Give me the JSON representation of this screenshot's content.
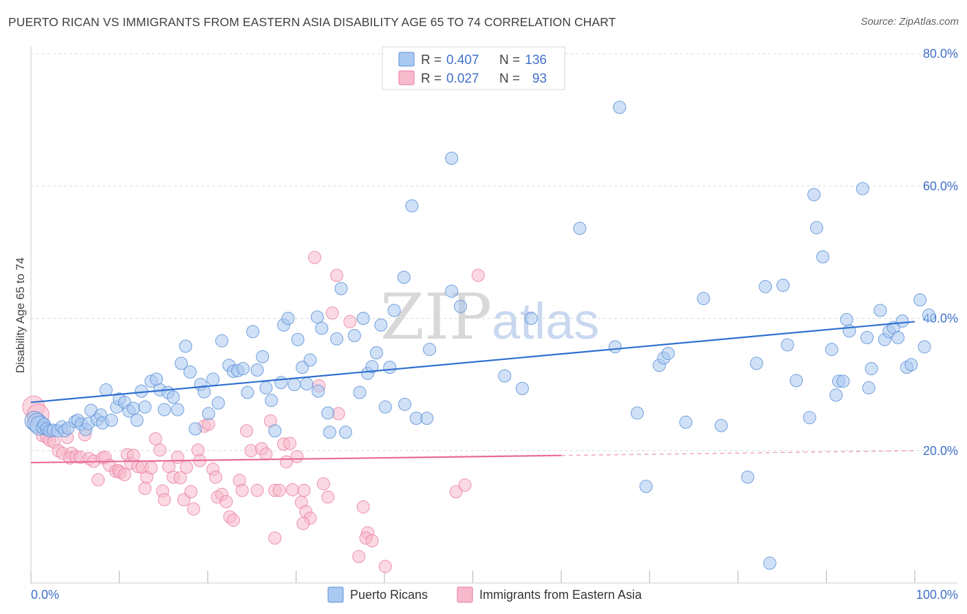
{
  "title": "PUERTO RICAN VS IMMIGRANTS FROM EASTERN ASIA DISABILITY AGE 65 TO 74 CORRELATION CHART",
  "source": "Source: ZipAtlas.com",
  "watermark": {
    "zip": "ZIP",
    "atlas": "atlas"
  },
  "legend": {
    "r_label": "R =",
    "n_label": "N =",
    "rows": [
      {
        "r": "0.407",
        "n": "136",
        "color": "#a9c9f1"
      },
      {
        "r": "0.027",
        "n": "93",
        "color": "#f7b9cc"
      }
    ]
  },
  "bottom_legend": [
    "Puerto Ricans",
    "Immigrants from Eastern Asia"
  ],
  "colors": {
    "blue_fill": "#a9c9f1",
    "blue_stroke": "#5b8fd6",
    "blue_line": "#2e6fd0",
    "pink_fill": "#f7b9cc",
    "pink_stroke": "#e8799c",
    "pink_line": "#e8699a",
    "tick_text": "#3f70c9",
    "grid": "#d9d9d9"
  },
  "chart_data": {
    "type": "scatter",
    "title": "PUERTO RICAN VS IMMIGRANTS FROM EASTERN ASIA DISABILITY AGE 65 TO 74 CORRELATION CHART",
    "xlabel": "",
    "ylabel": "Disability Age 65 to 74",
    "xlim": [
      0,
      100
    ],
    "ylim": [
      0,
      80
    ],
    "x_ticks": [
      "0.0%",
      "100.0%"
    ],
    "y_ticks": [
      {
        "value": 20,
        "label": "20.0%"
      },
      {
        "value": 40,
        "label": "40.0%"
      },
      {
        "value": 60,
        "label": "60.0%"
      },
      {
        "value": 80,
        "label": "80.0%"
      }
    ],
    "series": [
      {
        "name": "Puerto Ricans",
        "r": 0.407,
        "n": 136,
        "trend": {
          "x0": 0,
          "y0": 27.3,
          "x1": 100,
          "y1": 39.5
        },
        "points": [
          [
            0.4,
            24.5
          ],
          [
            0.7,
            24.2
          ],
          [
            1.0,
            23.8
          ],
          [
            1.3,
            23.5
          ],
          [
            1.5,
            24.0
          ],
          [
            1.8,
            23.3
          ],
          [
            2.1,
            23.0
          ],
          [
            2.5,
            23.1
          ],
          [
            3.0,
            23.0
          ],
          [
            3.5,
            23.6
          ],
          [
            3.8,
            23.0
          ],
          [
            4.2,
            23.4
          ],
          [
            5.0,
            24.4
          ],
          [
            5.3,
            24.6
          ],
          [
            5.7,
            24.0
          ],
          [
            6.2,
            23.2
          ],
          [
            6.5,
            24.1
          ],
          [
            6.8,
            26.1
          ],
          [
            7.5,
            24.7
          ],
          [
            7.9,
            25.4
          ],
          [
            8.1,
            24.2
          ],
          [
            8.5,
            29.2
          ],
          [
            9.1,
            24.6
          ],
          [
            9.7,
            26.6
          ],
          [
            10.0,
            27.8
          ],
          [
            10.6,
            27.3
          ],
          [
            11.1,
            26.0
          ],
          [
            11.6,
            26.4
          ],
          [
            12.0,
            24.6
          ],
          [
            12.5,
            29.0
          ],
          [
            12.9,
            26.6
          ],
          [
            13.6,
            30.5
          ],
          [
            14.2,
            30.8
          ],
          [
            14.6,
            29.2
          ],
          [
            15.1,
            26.2
          ],
          [
            15.5,
            28.8
          ],
          [
            16.1,
            28.1
          ],
          [
            16.6,
            26.2
          ],
          [
            17.0,
            33.2
          ],
          [
            17.5,
            35.8
          ],
          [
            18.0,
            31.9
          ],
          [
            18.6,
            23.3
          ],
          [
            19.2,
            30.0
          ],
          [
            19.6,
            28.9
          ],
          [
            20.1,
            25.6
          ],
          [
            20.6,
            30.8
          ],
          [
            21.2,
            27.2
          ],
          [
            21.6,
            36.6
          ],
          [
            22.4,
            32.9
          ],
          [
            22.9,
            32.0
          ],
          [
            23.4,
            32.1
          ],
          [
            24.0,
            32.4
          ],
          [
            24.5,
            28.8
          ],
          [
            25.1,
            38.0
          ],
          [
            25.6,
            32.2
          ],
          [
            26.2,
            34.2
          ],
          [
            26.6,
            29.5
          ],
          [
            27.2,
            27.6
          ],
          [
            27.6,
            23.0
          ],
          [
            28.3,
            30.3
          ],
          [
            28.6,
            39.0
          ],
          [
            29.1,
            40.0
          ],
          [
            29.8,
            30.0
          ],
          [
            30.2,
            36.8
          ],
          [
            30.7,
            32.6
          ],
          [
            31.2,
            30.1
          ],
          [
            31.6,
            33.7
          ],
          [
            32.5,
            29.0
          ],
          [
            32.4,
            40.2
          ],
          [
            32.9,
            38.5
          ],
          [
            33.6,
            25.7
          ],
          [
            33.8,
            22.8
          ],
          [
            34.6,
            36.9
          ],
          [
            35.1,
            44.5
          ],
          [
            35.6,
            22.8
          ],
          [
            36.6,
            37.4
          ],
          [
            37.6,
            40.0
          ],
          [
            38.1,
            31.7
          ],
          [
            37.2,
            28.8
          ],
          [
            38.6,
            32.7
          ],
          [
            39.1,
            34.8
          ],
          [
            39.6,
            39.0
          ],
          [
            40.1,
            26.6
          ],
          [
            40.6,
            32.6
          ],
          [
            41.1,
            41.2
          ],
          [
            42.2,
            46.2
          ],
          [
            42.3,
            27.0
          ],
          [
            43.1,
            57.0
          ],
          [
            43.6,
            24.9
          ],
          [
            44.8,
            24.9
          ],
          [
            45.1,
            35.3
          ],
          [
            47.6,
            64.2
          ],
          [
            47.6,
            44.1
          ],
          [
            48.6,
            41.8
          ],
          [
            53.6,
            31.3
          ],
          [
            55.6,
            29.4
          ],
          [
            56.6,
            40.0
          ],
          [
            62.1,
            53.6
          ],
          [
            66.6,
            71.9
          ],
          [
            66.1,
            35.7
          ],
          [
            68.6,
            25.7
          ],
          [
            69.6,
            14.6
          ],
          [
            71.1,
            32.9
          ],
          [
            71.6,
            34.0
          ],
          [
            72.1,
            34.7
          ],
          [
            74.1,
            24.3
          ],
          [
            76.1,
            43.0
          ],
          [
            78.1,
            23.8
          ],
          [
            81.1,
            16.0
          ],
          [
            82.1,
            33.2
          ],
          [
            83.1,
            44.8
          ],
          [
            83.6,
            3.0
          ],
          [
            85.1,
            45.0
          ],
          [
            85.6,
            36.0
          ],
          [
            86.6,
            30.6
          ],
          [
            88.1,
            25.0
          ],
          [
            88.6,
            58.7
          ],
          [
            88.9,
            53.7
          ],
          [
            89.6,
            49.3
          ],
          [
            90.6,
            35.3
          ],
          [
            91.1,
            28.4
          ],
          [
            91.4,
            30.5
          ],
          [
            91.9,
            30.5
          ],
          [
            92.3,
            39.8
          ],
          [
            92.6,
            38.1
          ],
          [
            94.1,
            59.6
          ],
          [
            94.6,
            37.1
          ],
          [
            95.1,
            32.4
          ],
          [
            94.8,
            29.5
          ],
          [
            96.1,
            41.2
          ],
          [
            96.6,
            36.8
          ],
          [
            97.1,
            38.0
          ],
          [
            97.6,
            38.6
          ],
          [
            98.1,
            37.1
          ],
          [
            98.6,
            39.6
          ],
          [
            99.1,
            32.6
          ],
          [
            99.6,
            33.0
          ],
          [
            100.6,
            42.8
          ],
          [
            101.1,
            35.7
          ],
          [
            101.6,
            40.5
          ]
        ]
      },
      {
        "name": "Immigrants from Eastern Asia",
        "r": 0.027,
        "n": 93,
        "trend": {
          "x0": 0,
          "y0": 18.2,
          "x1": 100,
          "y1": 20.0,
          "solid_until": 60
        },
        "points": [
          [
            0.3,
            26.6
          ],
          [
            0.8,
            25.4
          ],
          [
            1.3,
            22.3
          ],
          [
            1.8,
            22.0
          ],
          [
            2.1,
            21.6
          ],
          [
            2.6,
            21.3
          ],
          [
            3.1,
            20.0
          ],
          [
            3.6,
            19.6
          ],
          [
            4.1,
            22.0
          ],
          [
            4.6,
            19.6
          ],
          [
            4.4,
            18.9
          ],
          [
            5.1,
            19.1
          ],
          [
            5.6,
            19.0
          ],
          [
            6.1,
            22.4
          ],
          [
            6.6,
            18.8
          ],
          [
            7.1,
            18.4
          ],
          [
            7.6,
            15.6
          ],
          [
            8.1,
            18.9
          ],
          [
            8.4,
            19.0
          ],
          [
            8.9,
            17.8
          ],
          [
            9.6,
            16.9
          ],
          [
            9.9,
            17.0
          ],
          [
            10.1,
            16.7
          ],
          [
            10.6,
            16.4
          ],
          [
            10.9,
            19.4
          ],
          [
            11.3,
            18.1
          ],
          [
            11.6,
            19.3
          ],
          [
            12.1,
            17.6
          ],
          [
            12.6,
            17.5
          ],
          [
            13.1,
            16.0
          ],
          [
            12.9,
            14.3
          ],
          [
            13.6,
            17.4
          ],
          [
            14.1,
            21.8
          ],
          [
            14.6,
            20.1
          ],
          [
            14.9,
            13.9
          ],
          [
            15.1,
            12.6
          ],
          [
            15.6,
            17.6
          ],
          [
            16.1,
            16.0
          ],
          [
            16.6,
            19.0
          ],
          [
            16.9,
            15.9
          ],
          [
            17.3,
            12.6
          ],
          [
            17.6,
            17.5
          ],
          [
            18.1,
            13.8
          ],
          [
            18.4,
            11.2
          ],
          [
            18.9,
            20.1
          ],
          [
            19.1,
            18.5
          ],
          [
            19.6,
            23.7
          ],
          [
            20.1,
            24.0
          ],
          [
            20.6,
            17.2
          ],
          [
            20.9,
            16.0
          ],
          [
            21.1,
            13.0
          ],
          [
            21.6,
            13.4
          ],
          [
            22.1,
            12.3
          ],
          [
            22.5,
            10.0
          ],
          [
            22.9,
            9.5
          ],
          [
            23.6,
            15.5
          ],
          [
            23.9,
            14.0
          ],
          [
            24.4,
            23.0
          ],
          [
            24.9,
            20.0
          ],
          [
            25.6,
            14.0
          ],
          [
            26.1,
            20.3
          ],
          [
            26.6,
            19.5
          ],
          [
            27.1,
            24.5
          ],
          [
            27.6,
            14.0
          ],
          [
            27.6,
            6.8
          ],
          [
            28.1,
            14.0
          ],
          [
            28.6,
            21.0
          ],
          [
            28.9,
            18.3
          ],
          [
            29.3,
            21.1
          ],
          [
            29.6,
            14.1
          ],
          [
            30.1,
            19.1
          ],
          [
            30.6,
            12.2
          ],
          [
            30.9,
            14.0
          ],
          [
            31.1,
            10.8
          ],
          [
            31.6,
            9.8
          ],
          [
            32.1,
            49.2
          ],
          [
            32.6,
            29.8
          ],
          [
            33.1,
            15.0
          ],
          [
            33.6,
            13.0
          ],
          [
            34.1,
            40.8
          ],
          [
            34.6,
            46.5
          ],
          [
            34.8,
            25.6
          ],
          [
            36.1,
            39.5
          ],
          [
            37.6,
            11.5
          ],
          [
            38.1,
            7.6
          ],
          [
            37.9,
            6.8
          ],
          [
            38.6,
            6.4
          ],
          [
            37.1,
            4.0
          ],
          [
            40.1,
            2.5
          ],
          [
            48.1,
            13.8
          ],
          [
            49.1,
            14.8
          ],
          [
            50.6,
            46.5
          ],
          [
            30.8,
            9.0
          ]
        ]
      }
    ]
  }
}
